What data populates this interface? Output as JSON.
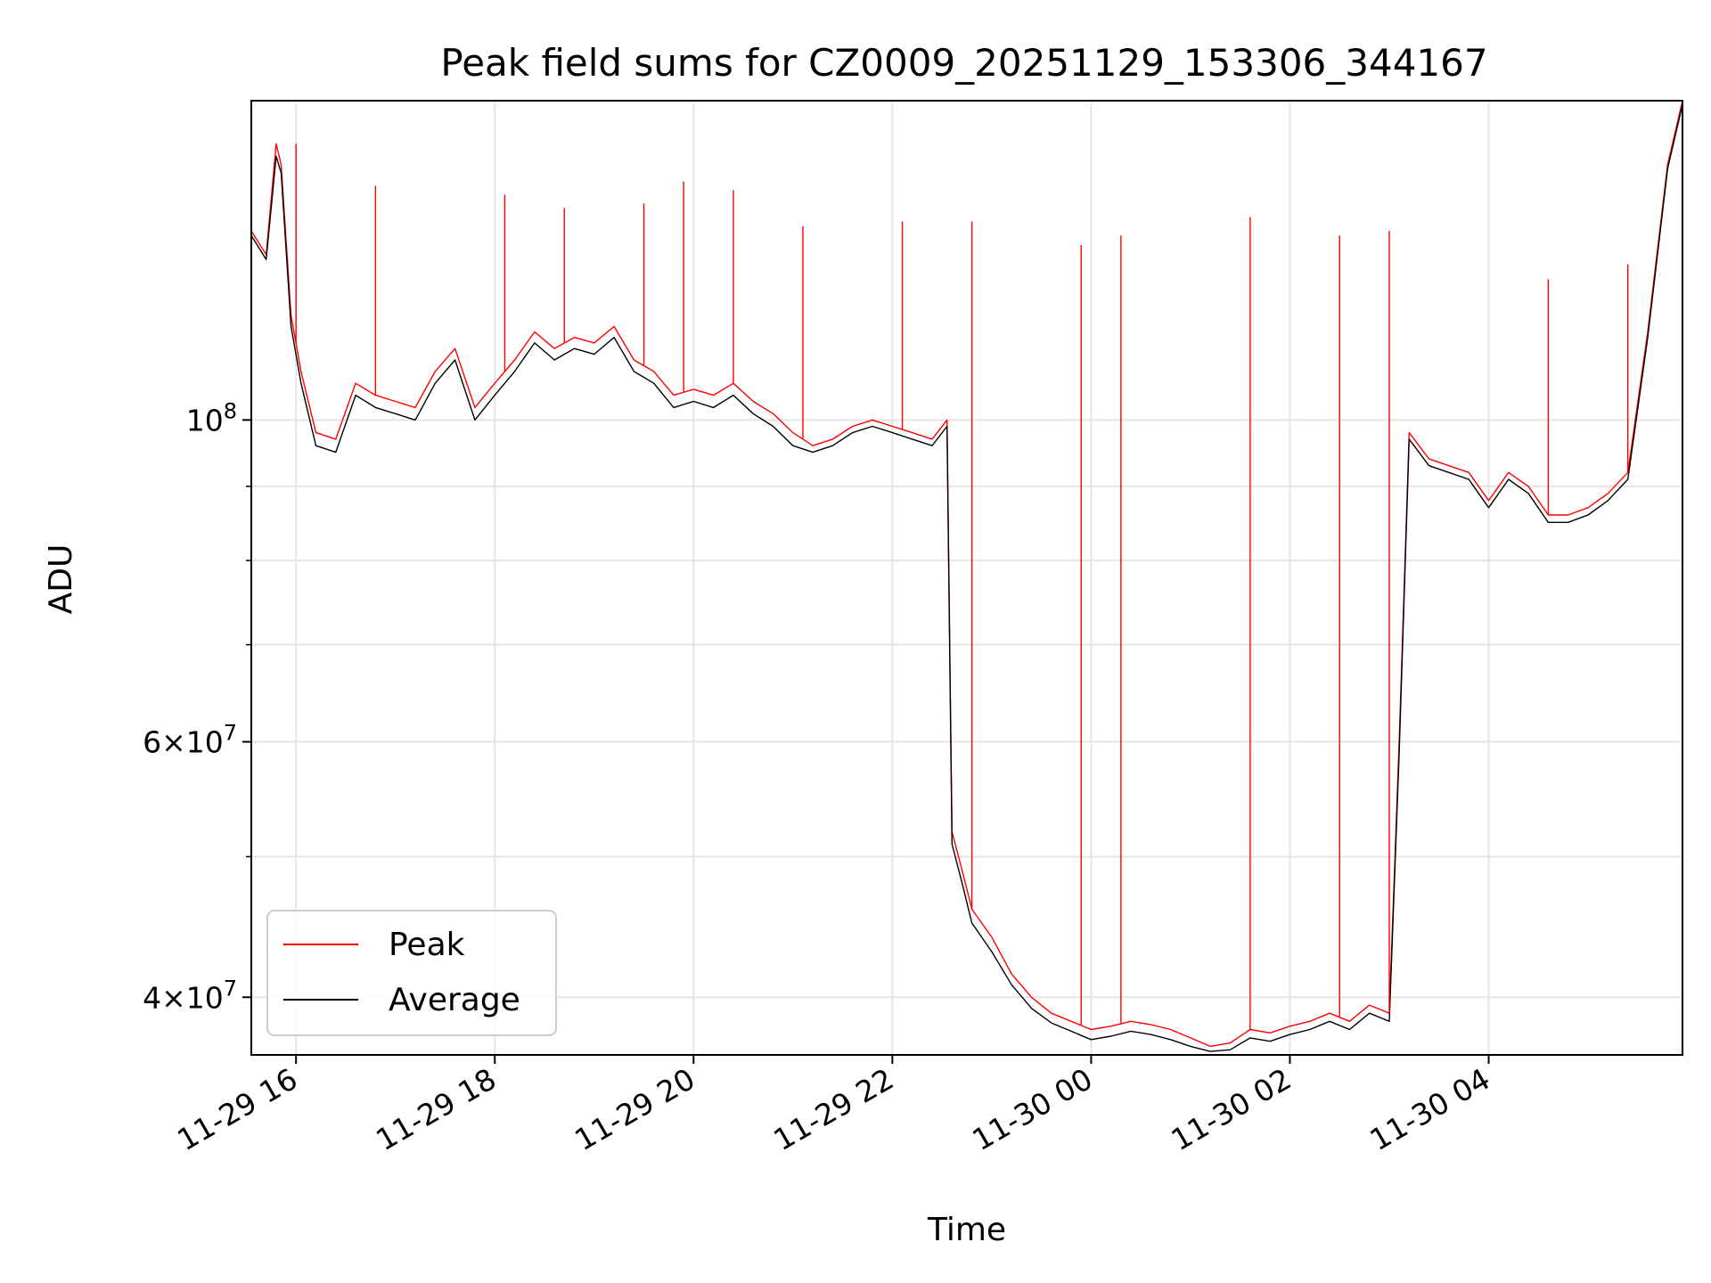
{
  "chart_data": {
    "type": "line",
    "title": "Peak field sums for CZ0009_20251129_153306_344167",
    "xlabel": "Time",
    "ylabel": "ADU",
    "yscale": "log",
    "xlim": [
      "2025-11-29 15:33",
      "2025-11-30 05:57"
    ],
    "ylim": [
      36500000,
      166000000
    ],
    "grid": true,
    "legend": "lower-left",
    "x_ticks": [
      "11-29 16",
      "11-29 18",
      "11-29 20",
      "11-29 22",
      "11-30 00",
      "11-30 02",
      "11-30 04"
    ],
    "y_ticks": [
      {
        "value": 100000000,
        "base": "10",
        "exp": "8",
        "mant": ""
      },
      {
        "value": 60000000,
        "base": "10",
        "exp": "7",
        "mant": "6"
      },
      {
        "value": 40000000,
        "base": "10",
        "exp": "7",
        "mant": "4"
      }
    ],
    "x": [
      "2025-11-29 15:33",
      "2025-11-29 15:42",
      "2025-11-29 15:48",
      "2025-11-29 15:51",
      "2025-11-29 15:57",
      "2025-11-29 16:03",
      "2025-11-29 16:12",
      "2025-11-29 16:24",
      "2025-11-29 16:36",
      "2025-11-29 16:48",
      "2025-11-29 17:00",
      "2025-11-29 17:12",
      "2025-11-29 17:24",
      "2025-11-29 17:36",
      "2025-11-29 17:48",
      "2025-11-29 18:00",
      "2025-11-29 18:12",
      "2025-11-29 18:24",
      "2025-11-29 18:36",
      "2025-11-29 18:48",
      "2025-11-29 19:00",
      "2025-11-29 19:12",
      "2025-11-29 19:24",
      "2025-11-29 19:36",
      "2025-11-29 19:48",
      "2025-11-29 20:00",
      "2025-11-29 20:12",
      "2025-11-29 20:24",
      "2025-11-29 20:36",
      "2025-11-29 20:48",
      "2025-11-29 21:00",
      "2025-11-29 21:12",
      "2025-11-29 21:24",
      "2025-11-29 21:36",
      "2025-11-29 21:48",
      "2025-11-29 22:00",
      "2025-11-29 22:12",
      "2025-11-29 22:24",
      "2025-11-29 22:33",
      "2025-11-29 22:36",
      "2025-11-29 22:42",
      "2025-11-29 22:48",
      "2025-11-29 23:00",
      "2025-11-29 23:12",
      "2025-11-29 23:24",
      "2025-11-29 23:36",
      "2025-11-29 23:48",
      "2025-11-30 00:00",
      "2025-11-30 00:12",
      "2025-11-30 00:24",
      "2025-11-30 00:36",
      "2025-11-30 00:48",
      "2025-11-30 01:00",
      "2025-11-30 01:12",
      "2025-11-30 01:24",
      "2025-11-30 01:36",
      "2025-11-30 01:48",
      "2025-11-30 02:00",
      "2025-11-30 02:12",
      "2025-11-30 02:24",
      "2025-11-30 02:36",
      "2025-11-30 02:48",
      "2025-11-30 03:00",
      "2025-11-30 03:06",
      "2025-11-30 03:12",
      "2025-11-30 03:24",
      "2025-11-30 03:36",
      "2025-11-30 03:48",
      "2025-11-30 04:00",
      "2025-11-30 04:12",
      "2025-11-30 04:24",
      "2025-11-30 04:36",
      "2025-11-30 04:48",
      "2025-11-30 05:00",
      "2025-11-30 05:12",
      "2025-11-30 05:24",
      "2025-11-30 05:36",
      "2025-11-30 05:48",
      "2025-11-30 05:57"
    ],
    "series": [
      {
        "name": "Peak",
        "color": "#ff0000",
        "values": [
          135000000,
          130000000,
          155000000,
          150000000,
          118000000,
          108000000,
          98000000,
          97000000,
          106000000,
          104000000,
          103000000,
          102000000,
          108000000,
          112000000,
          102000000,
          106000000,
          110000000,
          115000000,
          112000000,
          114000000,
          113000000,
          116000000,
          110000000,
          108000000,
          104000000,
          105000000,
          104000000,
          106000000,
          103000000,
          101000000,
          98000000,
          96000000,
          97000000,
          99000000,
          100000000,
          99000000,
          98000000,
          97000000,
          100000000,
          52000000,
          49000000,
          46000000,
          44000000,
          41500000,
          40000000,
          39000000,
          38500000,
          38000000,
          38200000,
          38500000,
          38300000,
          38000000,
          37500000,
          37000000,
          37200000,
          38000000,
          37800000,
          38200000,
          38500000,
          39000000,
          38500000,
          39500000,
          39000000,
          60000000,
          98000000,
          94000000,
          93000000,
          92000000,
          88000000,
          92000000,
          90000000,
          86000000,
          86000000,
          87000000,
          89000000,
          92000000,
          115000000,
          150000000,
          166000000
        ],
        "spikes": [
          {
            "x": "2025-11-29 16:00",
            "y": 155000000
          },
          {
            "x": "2025-11-29 16:48",
            "y": 145000000
          },
          {
            "x": "2025-11-29 18:06",
            "y": 143000000
          },
          {
            "x": "2025-11-29 18:42",
            "y": 140000000
          },
          {
            "x": "2025-11-29 19:30",
            "y": 141000000
          },
          {
            "x": "2025-11-29 19:54",
            "y": 146000000
          },
          {
            "x": "2025-11-29 20:24",
            "y": 144000000
          },
          {
            "x": "2025-11-29 21:06",
            "y": 136000000
          },
          {
            "x": "2025-11-29 22:06",
            "y": 137000000
          },
          {
            "x": "2025-11-29 22:48",
            "y": 137000000
          },
          {
            "x": "2025-11-29 23:54",
            "y": 132000000
          },
          {
            "x": "2025-11-30 00:18",
            "y": 134000000
          },
          {
            "x": "2025-11-30 01:36",
            "y": 138000000
          },
          {
            "x": "2025-11-30 02:30",
            "y": 134000000
          },
          {
            "x": "2025-11-30 03:00",
            "y": 135000000
          },
          {
            "x": "2025-11-30 04:36",
            "y": 125000000
          },
          {
            "x": "2025-11-30 05:24",
            "y": 128000000
          }
        ]
      },
      {
        "name": "Average",
        "color": "#000000",
        "values": [
          134000000,
          129000000,
          152000000,
          148000000,
          116000000,
          106000000,
          96000000,
          95000000,
          104000000,
          102000000,
          101000000,
          100000000,
          106000000,
          110000000,
          100000000,
          104000000,
          108000000,
          113000000,
          110000000,
          112000000,
          111000000,
          114000000,
          108000000,
          106000000,
          102000000,
          103000000,
          102000000,
          104000000,
          101000000,
          99000000,
          96000000,
          95000000,
          96000000,
          98000000,
          99000000,
          98000000,
          97000000,
          96000000,
          99000000,
          51000000,
          48000000,
          45000000,
          43000000,
          40800000,
          39300000,
          38400000,
          37900000,
          37400000,
          37600000,
          37900000,
          37700000,
          37400000,
          37000000,
          36700000,
          36800000,
          37500000,
          37300000,
          37700000,
          38000000,
          38500000,
          38000000,
          39000000,
          38500000,
          59000000,
          97000000,
          93000000,
          92000000,
          91000000,
          87000000,
          91000000,
          89000000,
          85000000,
          85000000,
          86000000,
          88000000,
          91000000,
          114000000,
          149000000,
          165000000
        ]
      }
    ]
  }
}
